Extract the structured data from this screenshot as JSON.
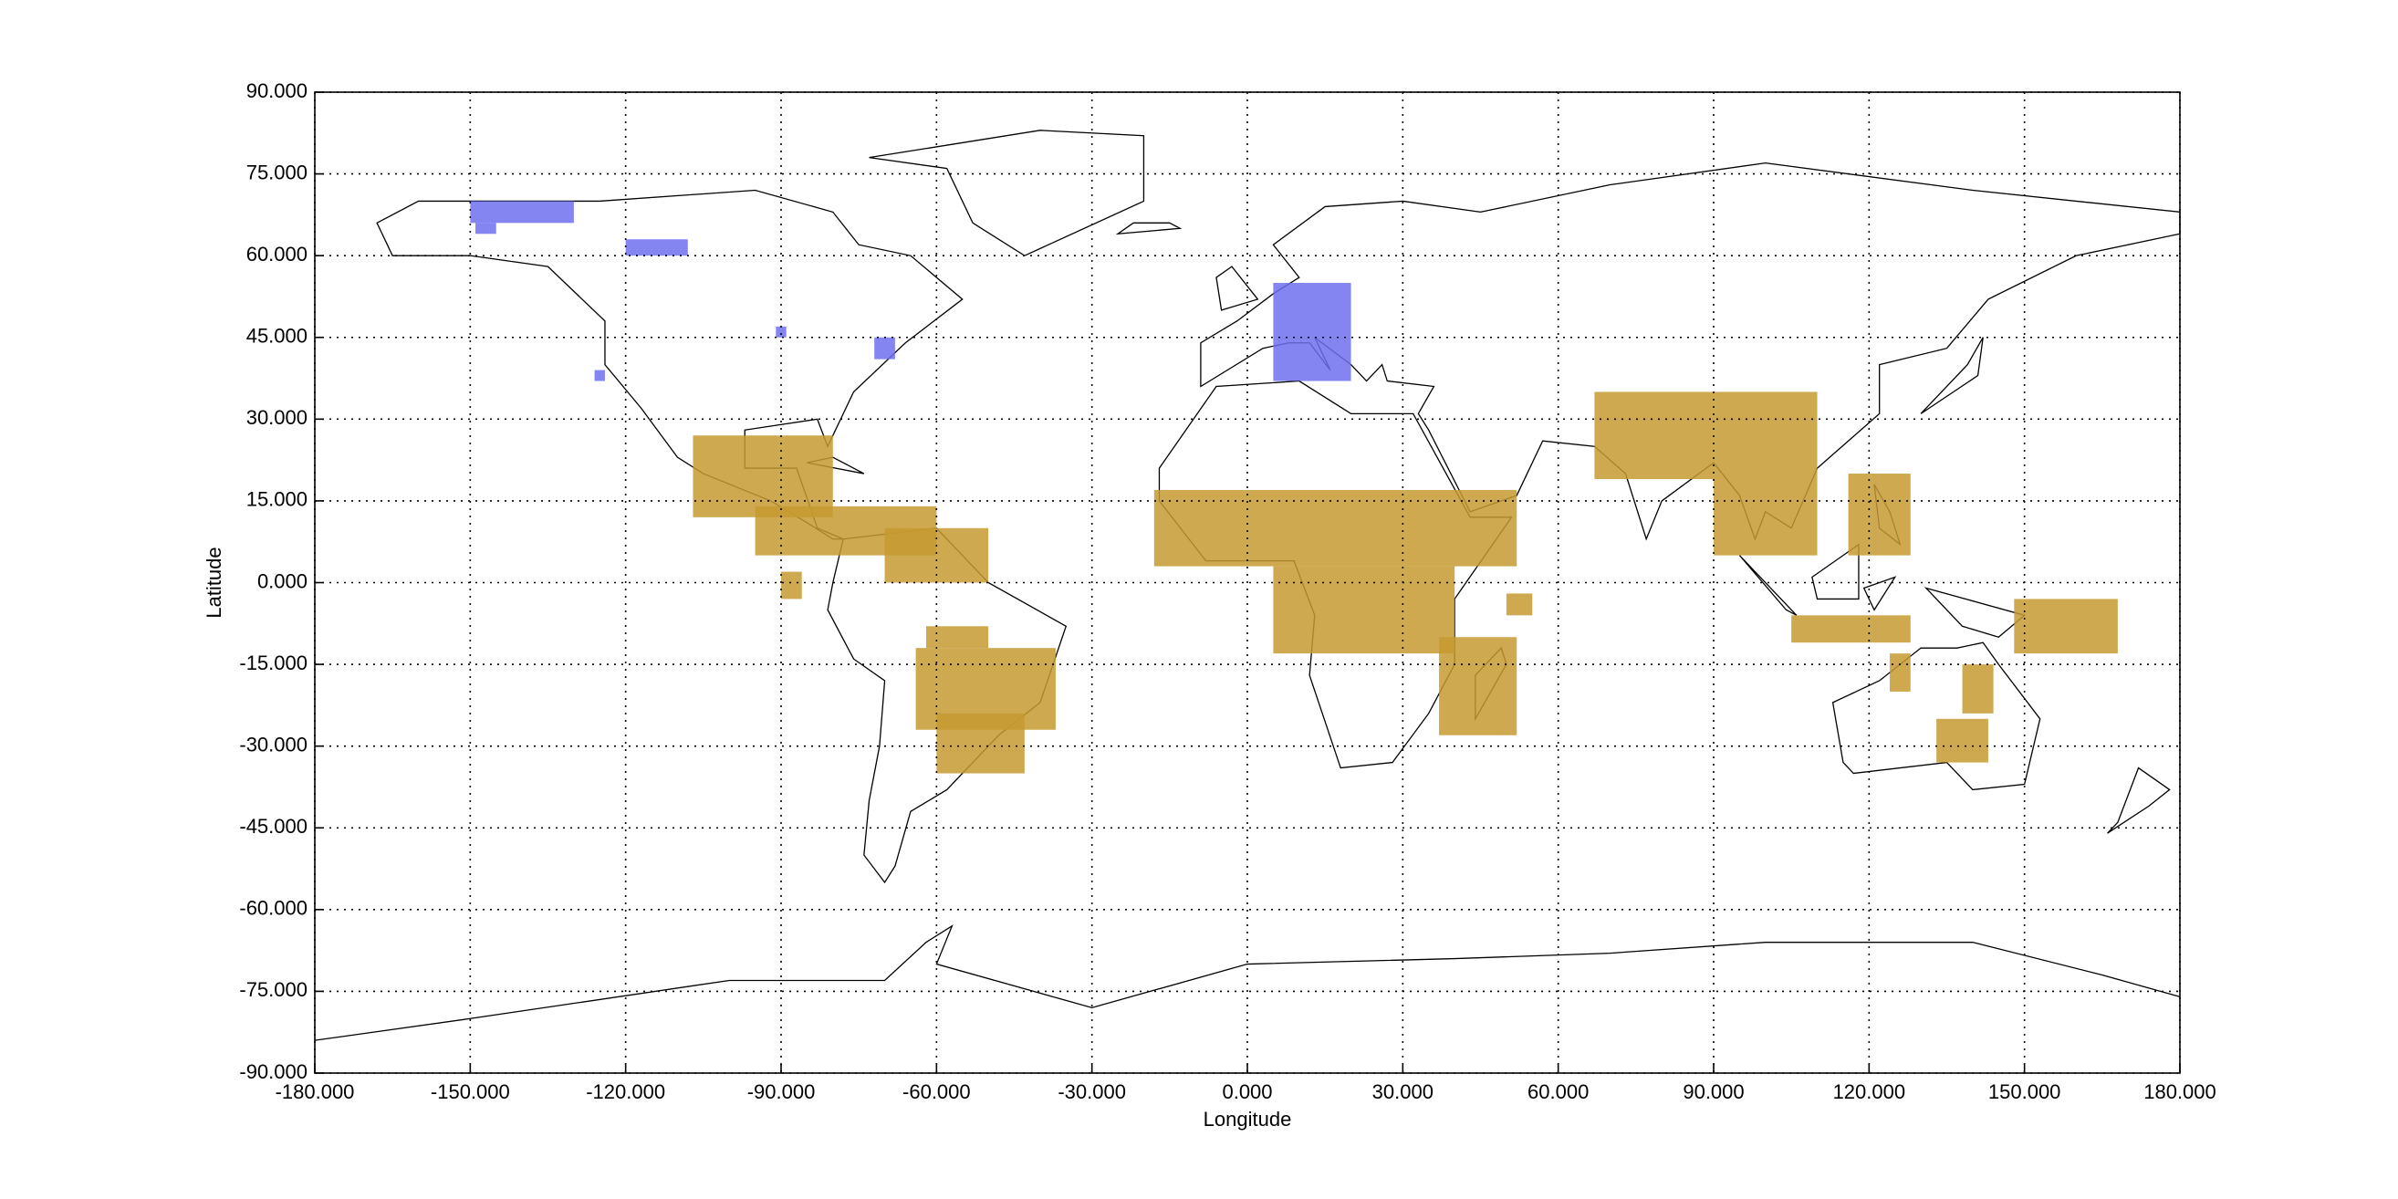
{
  "chart_data": {
    "type": "map",
    "xlabel": "Longitude",
    "ylabel": "Latitude",
    "xlim": [
      -180,
      180
    ],
    "ylim": [
      -90,
      90
    ],
    "xticks": [
      {
        "value": -180,
        "label": "-180.000"
      },
      {
        "value": -150,
        "label": "-150.000"
      },
      {
        "value": -120,
        "label": "-120.000"
      },
      {
        "value": -90,
        "label": "-90.000"
      },
      {
        "value": -60,
        "label": "-60.000"
      },
      {
        "value": -30,
        "label": "-30.000"
      },
      {
        "value": 0,
        "label": "0.000"
      },
      {
        "value": 30,
        "label": "30.000"
      },
      {
        "value": 60,
        "label": "60.000"
      },
      {
        "value": 90,
        "label": "90.000"
      },
      {
        "value": 120,
        "label": "120.000"
      },
      {
        "value": 150,
        "label": "150.000"
      },
      {
        "value": 180,
        "label": "180.000"
      }
    ],
    "yticks": [
      {
        "value": -90,
        "label": "-90.000"
      },
      {
        "value": -75,
        "label": "-75.000"
      },
      {
        "value": -60,
        "label": "-60.000"
      },
      {
        "value": -45,
        "label": "-45.000"
      },
      {
        "value": -30,
        "label": "-30.000"
      },
      {
        "value": -15,
        "label": "-15.000"
      },
      {
        "value": 0,
        "label": "0.000"
      },
      {
        "value": 15,
        "label": "15.000"
      },
      {
        "value": 30,
        "label": "30.000"
      },
      {
        "value": 45,
        "label": "45.000"
      },
      {
        "value": 60,
        "label": "60.000"
      },
      {
        "value": 75,
        "label": "75.000"
      },
      {
        "value": 90,
        "label": "90.000"
      }
    ],
    "grid": true,
    "series": [
      {
        "color": "#c69a30",
        "regions": [
          {
            "lon": [
              -107,
              -80
            ],
            "lat": [
              12,
              27
            ]
          },
          {
            "lon": [
              -95,
              -60
            ],
            "lat": [
              5,
              14
            ]
          },
          {
            "lon": [
              -70,
              -50
            ],
            "lat": [
              0,
              10
            ]
          },
          {
            "lon": [
              -90,
              -86
            ],
            "lat": [
              -3,
              2
            ]
          },
          {
            "lon": [
              -64,
              -37
            ],
            "lat": [
              -27,
              -12
            ]
          },
          {
            "lon": [
              -60,
              -43
            ],
            "lat": [
              -35,
              -24
            ]
          },
          {
            "lon": [
              -62,
              -50
            ],
            "lat": [
              -12,
              -8
            ]
          },
          {
            "lon": [
              -18,
              52
            ],
            "lat": [
              3,
              17
            ]
          },
          {
            "lon": [
              5,
              40
            ],
            "lat": [
              -13,
              3
            ]
          },
          {
            "lon": [
              37,
              52
            ],
            "lat": [
              -28,
              -10
            ]
          },
          {
            "lon": [
              50,
              55
            ],
            "lat": [
              -6,
              -2
            ]
          },
          {
            "lon": [
              67,
              110
            ],
            "lat": [
              19,
              35
            ]
          },
          {
            "lon": [
              90,
              110
            ],
            "lat": [
              5,
              19
            ]
          },
          {
            "lon": [
              116,
              128
            ],
            "lat": [
              5,
              20
            ]
          },
          {
            "lon": [
              105,
              128
            ],
            "lat": [
              -11,
              -6
            ]
          },
          {
            "lon": [
              148,
              168
            ],
            "lat": [
              -13,
              -3
            ]
          },
          {
            "lon": [
              124,
              128
            ],
            "lat": [
              -20,
              -13
            ]
          },
          {
            "lon": [
              138,
              144
            ],
            "lat": [
              -24,
              -15
            ]
          },
          {
            "lon": [
              133,
              143
            ],
            "lat": [
              -33,
              -25
            ]
          }
        ]
      },
      {
        "color": "#7070f0",
        "regions": [
          {
            "lon": [
              -150,
              -130
            ],
            "lat": [
              66,
              70
            ]
          },
          {
            "lon": [
              -149,
              -145
            ],
            "lat": [
              64,
              66
            ]
          },
          {
            "lon": [
              -120,
              -108
            ],
            "lat": [
              60,
              63
            ]
          },
          {
            "lon": [
              5,
              20
            ],
            "lat": [
              37,
              55
            ]
          },
          {
            "lon": [
              -72,
              -68
            ],
            "lat": [
              41,
              45
            ]
          },
          {
            "lon": [
              -91,
              -89
            ],
            "lat": [
              45,
              47
            ]
          },
          {
            "lon": [
              -126,
              -124
            ],
            "lat": [
              37,
              39
            ]
          }
        ]
      }
    ]
  }
}
